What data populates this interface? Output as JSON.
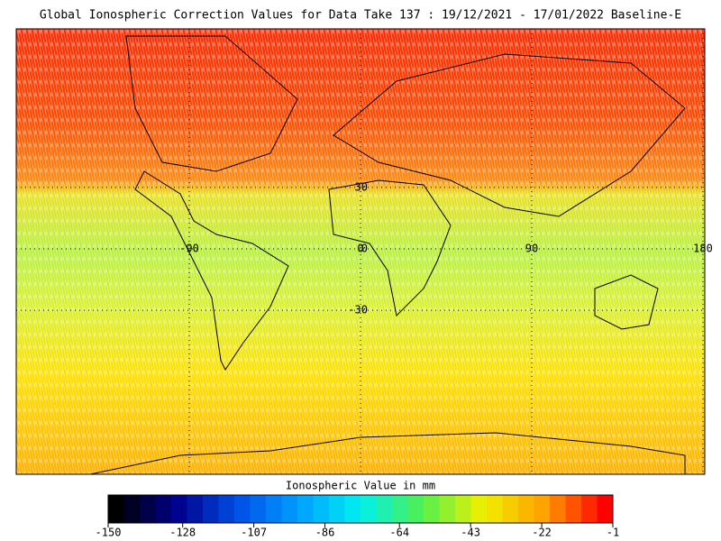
{
  "header": {
    "title": "Global Ionospheric Correction Values for Data Take 137 : 19/12/2021 - 17/01/2022 Baseline-E"
  },
  "map": {
    "lat_labels": [
      30,
      0,
      -30
    ],
    "lon_labels": [
      -90,
      0,
      90,
      180
    ]
  },
  "colorbar": {
    "label": "Ionospheric Value in mm",
    "ticks": [
      -150,
      -128,
      -107,
      -86,
      -64,
      -43,
      -22,
      -1
    ]
  }
}
